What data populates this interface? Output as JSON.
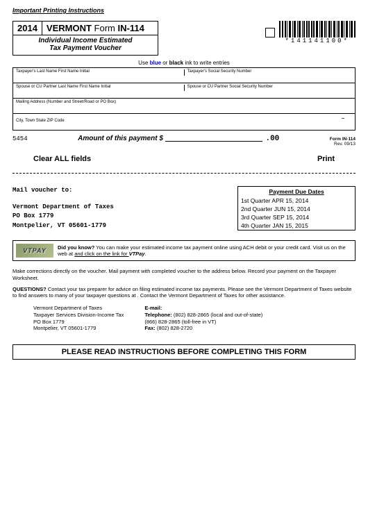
{
  "header_link": "Important Printing Instructions",
  "title": {
    "year": "2014",
    "state": "VERMONT",
    "form_word": "Form",
    "form_code": "IN-114",
    "subtitle_line1": "Individual Income Estimated",
    "subtitle_line2": "Tax Payment Voucher"
  },
  "barcode_text": "*141141100*",
  "ink_note": {
    "prefix": "Use ",
    "blue": "blue",
    "mid": " or ",
    "black": "black",
    "suffix": " ink to write entries"
  },
  "fields": {
    "row1a": "Taxpayer's Last Name First Name Initial",
    "row1b": "Taxpayer's Social Security Number",
    "row2a": "Spouse or CU Partner Last Name First Name Initial",
    "row2b": "Spouse or CU Partner Social Security Number",
    "row3": "Mailing Address (Number and Street/Road or PO Box)",
    "row4": "City, Town  State ZIP Code",
    "dash": "–"
  },
  "amount": {
    "code": "5454",
    "label": "Amount of this payment $",
    "zeros": ".00",
    "form_label": "Form IN-114",
    "rev": "Rev. 09/13"
  },
  "buttons": {
    "clear": "Clear ALL fields",
    "print": "Print"
  },
  "mail": {
    "header": "Mail voucher to:",
    "line1": "Vermont Department of Taxes",
    "line2": "PO Box 1779",
    "line3": "Montpelier, VT  05601-1779"
  },
  "due": {
    "header": "Payment Due Dates",
    "q1": "1st Quarter APR 15, 2014",
    "q2": "2nd Quarter JUN 15, 2014",
    "q3": "3rd Quarter SEP 15, 2014",
    "q4": "4th Quarter JAN 15, 2015"
  },
  "vtpay": {
    "logo": "VTPAY",
    "dyk": "Did you know?",
    "text1": "  You can make your estimated income tax payment online using ACH debit or your credit card.  Visit us on the web at ",
    "link": " and click on the link for ",
    "brand": "VTPay",
    "period": "."
  },
  "instr1": "Make corrections directly on the voucher.  Mail payment with completed voucher to the address below.  Record your payment on the Taxpayer Worksheet.",
  "instr2_q": "QUESTIONS?",
  "instr2": "  Contact your tax preparer for advice on filing estimated income tax payments.  Please see the Vermont Department of Taxes website to find answers to many of your taxpayer questions at .  Contact the Vermont Department of Taxes for other assistance.",
  "contact_left": {
    "l1": "Vermont Department of Taxes",
    "l2": "Taxpayer Services Division-Income Tax",
    "l3": "PO Box 1779",
    "l4": "Montpelier, VT  05601-1779"
  },
  "contact_right": {
    "email_lbl": "E-mail:",
    "tel_lbl": "Telephone:",
    "tel1": " (802) 828-2865 (local and out-of-state)",
    "tel2": "(866) 828-2865 (toll-free in VT)",
    "fax_lbl": "Fax:",
    "fax": " (802) 828-2720"
  },
  "footer": "PLEASE READ INSTRUCTIONS BEFORE COMPLETING THIS FORM"
}
